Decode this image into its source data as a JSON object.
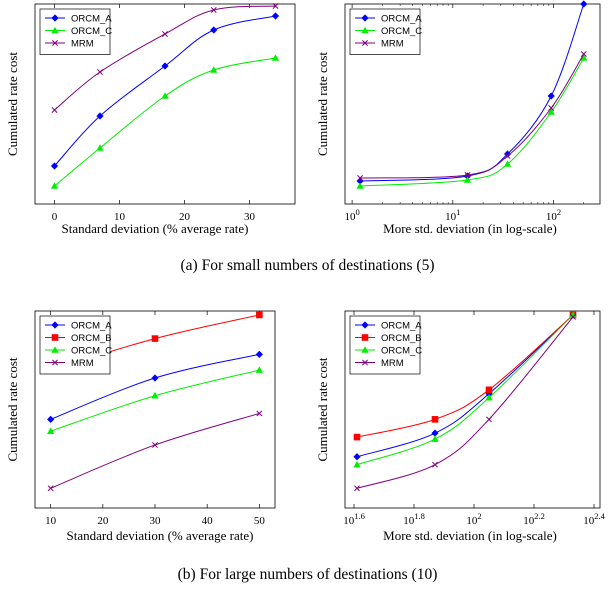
{
  "captions": {
    "top": "(a)  For small numbers of destinations (5)",
    "bottom": "(b)  For large numbers of destinations (10)"
  },
  "colors": {
    "ORCM_A": "#0000ff",
    "ORCM_B": "#ff0000",
    "ORCM_C": "#00ee00",
    "MRM": "#800080"
  },
  "chart_data": [
    {
      "id": "small-linear",
      "type": "line",
      "xlabel": "Standard deviation (% average rate)",
      "ylabel": "Cumulated rate cost",
      "xscale": "linear",
      "xlim": [
        -3,
        37
      ],
      "ylim": [
        0,
        1
      ],
      "yticks_shown": false,
      "xticks": [
        0,
        10,
        20,
        30
      ],
      "xtick_labels": [
        "0",
        "10",
        "20",
        "30"
      ],
      "legend": "top-left",
      "series": [
        {
          "name": "ORCM_A",
          "marker": "diamond",
          "x": [
            0,
            7,
            17,
            24.5,
            34
          ],
          "y": [
            0.19,
            0.44,
            0.69,
            0.87,
            0.94
          ]
        },
        {
          "name": "ORCM_C",
          "marker": "triangle",
          "x": [
            0,
            7,
            17,
            24.5,
            34
          ],
          "y": [
            0.09,
            0.28,
            0.54,
            0.67,
            0.73
          ]
        },
        {
          "name": "MRM",
          "marker": "cross",
          "x": [
            0,
            7,
            17,
            24.5,
            34
          ],
          "y": [
            0.47,
            0.66,
            0.85,
            0.97,
            0.99
          ]
        }
      ]
    },
    {
      "id": "small-log",
      "type": "line",
      "xlabel": "More std. deviation (in log-scale)",
      "ylabel": "Cumulated rate cost",
      "xscale": "log",
      "xlim": [
        0.85,
        290
      ],
      "ylim": [
        0,
        1
      ],
      "yticks_shown": false,
      "xticks": [
        1,
        10,
        100
      ],
      "xtick_labels": [
        "10^0",
        "10^1",
        "10^2"
      ],
      "legend": "top-left",
      "series": [
        {
          "name": "ORCM_A",
          "marker": "diamond",
          "x": [
            1.2,
            14,
            35,
            95,
            200
          ],
          "y": [
            0.115,
            0.14,
            0.25,
            0.54,
            1.0
          ]
        },
        {
          "name": "ORCM_C",
          "marker": "triangle",
          "x": [
            1.2,
            14,
            35,
            95,
            200
          ],
          "y": [
            0.09,
            0.12,
            0.2,
            0.46,
            0.73
          ]
        },
        {
          "name": "MRM",
          "marker": "cross",
          "x": [
            1.2,
            14,
            35,
            95,
            200
          ],
          "y": [
            0.13,
            0.145,
            0.24,
            0.48,
            0.75
          ]
        }
      ]
    },
    {
      "id": "large-linear",
      "type": "line",
      "xlabel": "Standard deviation (% average rate)",
      "ylabel": "Cumulated rate cost",
      "xscale": "linear",
      "xlim": [
        7,
        53
      ],
      "ylim": [
        0,
        1
      ],
      "yticks_shown": false,
      "xticks": [
        10,
        20,
        30,
        40,
        50
      ],
      "xtick_labels": [
        "10",
        "20",
        "30",
        "40",
        "50"
      ],
      "legend": "top-left",
      "series": [
        {
          "name": "ORCM_A",
          "marker": "diamond",
          "x": [
            10,
            30,
            50
          ],
          "y": [
            0.45,
            0.66,
            0.78
          ]
        },
        {
          "name": "ORCM_B",
          "marker": "square",
          "x": [
            10,
            30,
            50
          ],
          "y": [
            0.7,
            0.86,
            0.98
          ]
        },
        {
          "name": "ORCM_C",
          "marker": "triangle",
          "x": [
            10,
            30,
            50
          ],
          "y": [
            0.39,
            0.57,
            0.7
          ]
        },
        {
          "name": "MRM",
          "marker": "cross",
          "x": [
            10,
            30,
            50
          ],
          "y": [
            0.1,
            0.32,
            0.48
          ]
        }
      ]
    },
    {
      "id": "large-log",
      "type": "line",
      "xlabel": "More std. deviation (in log-scale)",
      "ylabel": "Cumulated rate cost",
      "xscale": "log",
      "xlim": [
        1.57,
        2.42
      ],
      "xlim_note": "log10 exponents",
      "ylim": [
        0,
        1
      ],
      "yticks_shown": false,
      "xticks": [
        1.6,
        1.8,
        2,
        2.2,
        2.4
      ],
      "xtick_labels": [
        "10^1.6",
        "10^1.8",
        "10^2",
        "10^2.2",
        "10^2.4"
      ],
      "legend": "top-left",
      "series": [
        {
          "name": "ORCM_A",
          "marker": "diamond",
          "x": [
            1.61,
            1.87,
            2.05,
            2.33
          ],
          "y": [
            0.26,
            0.38,
            0.58,
            0.98
          ]
        },
        {
          "name": "ORCM_B",
          "marker": "square",
          "x": [
            1.61,
            1.87,
            2.05,
            2.33
          ],
          "y": [
            0.36,
            0.45,
            0.6,
            0.98
          ]
        },
        {
          "name": "ORCM_C",
          "marker": "triangle",
          "x": [
            1.61,
            1.87,
            2.05,
            2.33
          ],
          "y": [
            0.22,
            0.35,
            0.56,
            0.98
          ]
        },
        {
          "name": "MRM",
          "marker": "cross",
          "x": [
            1.61,
            1.87,
            2.05,
            2.33
          ],
          "y": [
            0.1,
            0.22,
            0.45,
            0.97
          ]
        }
      ]
    }
  ]
}
